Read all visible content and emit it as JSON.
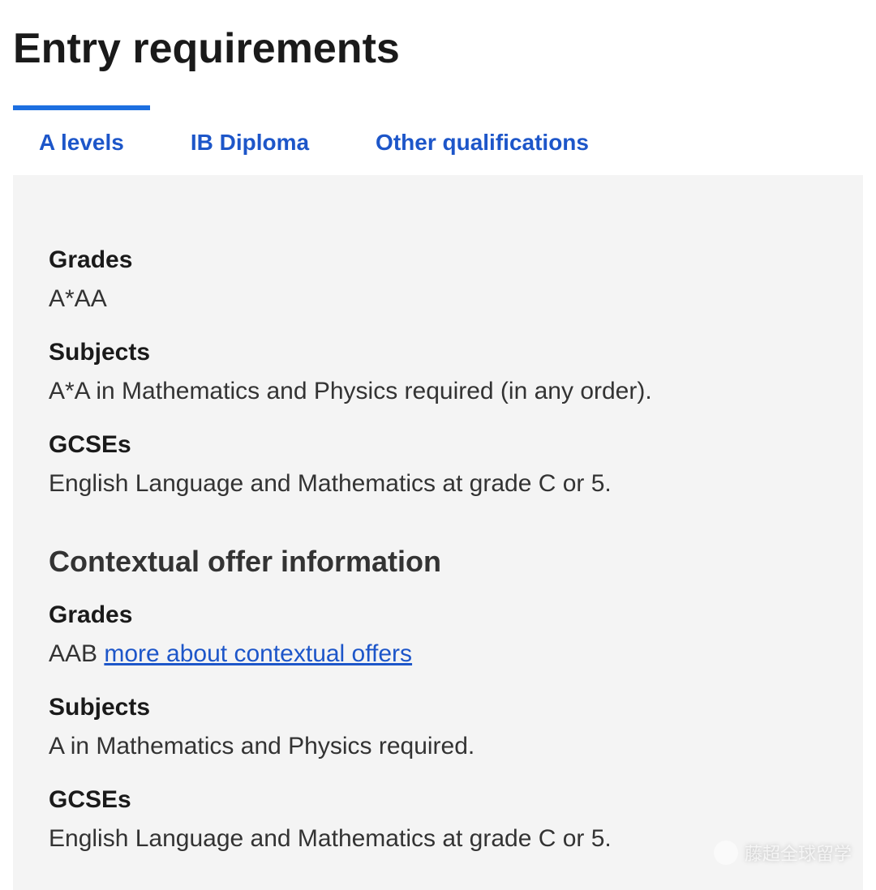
{
  "page_title": "Entry requirements",
  "colors": {
    "link": "#1d56c9",
    "tab_active_border": "#1d6fe0",
    "panel_bg": "#f4f4f4",
    "text": "#333333",
    "heading": "#1a1a1a"
  },
  "tabs": [
    {
      "label": "A levels",
      "active": true
    },
    {
      "label": "IB Diploma",
      "active": false
    },
    {
      "label": "Other qualifications",
      "active": false
    }
  ],
  "a_levels": {
    "grades": {
      "label": "Grades",
      "value": "A*AA"
    },
    "subjects": {
      "label": "Subjects",
      "value": "A*A in Mathematics and Physics required (in any order)."
    },
    "gcses": {
      "label": "GCSEs",
      "value": "English Language and Mathematics at grade C or 5."
    },
    "contextual": {
      "heading": "Contextual offer information",
      "grades": {
        "label": "Grades",
        "value": "AAB",
        "link_text": "more about contextual offers"
      },
      "subjects": {
        "label": "Subjects",
        "value": "A in Mathematics and Physics required."
      },
      "gcses": {
        "label": "GCSEs",
        "value": "English Language and Mathematics at grade C or 5."
      }
    }
  },
  "watermark": "藤超全球留学"
}
